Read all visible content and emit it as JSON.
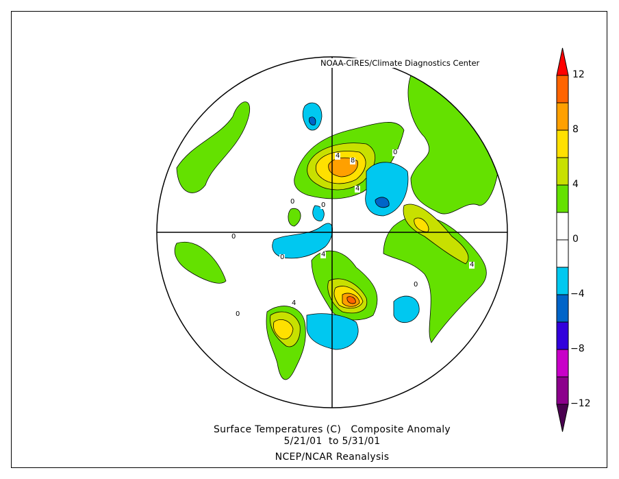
{
  "map": {
    "credit": "NOAA-CIRES/Climate Diagnostics Center",
    "projection": "north polar stereographic",
    "contour_labels": [
      "4",
      "8",
      "4",
      "0",
      "0",
      "0",
      "4",
      "0",
      "0",
      "0",
      "4",
      "4",
      "0"
    ]
  },
  "title": {
    "line1": "Surface Temperatures (C)   Composite Anomaly",
    "line2": "5/21/01  to 5/31/01",
    "line3": "NCEP/NCAR Reanalysis"
  },
  "colorbar": {
    "ticks": [
      "12",
      "8",
      "4",
      "0",
      "−4",
      "−8",
      "−12"
    ],
    "levels": [
      -12,
      -10,
      -8,
      -6,
      -4,
      -2,
      0,
      2,
      4,
      6,
      8,
      10,
      12
    ],
    "colors": [
      "#4a0050",
      "#8c008c",
      "#c800c8",
      "#3200dc",
      "#0064c8",
      "#00c8f0",
      "#ffffff",
      "#ffffff",
      "#64e100",
      "#c8e000",
      "#ffe000",
      "#ffa000",
      "#ff6400",
      "#ff0000"
    ]
  }
}
